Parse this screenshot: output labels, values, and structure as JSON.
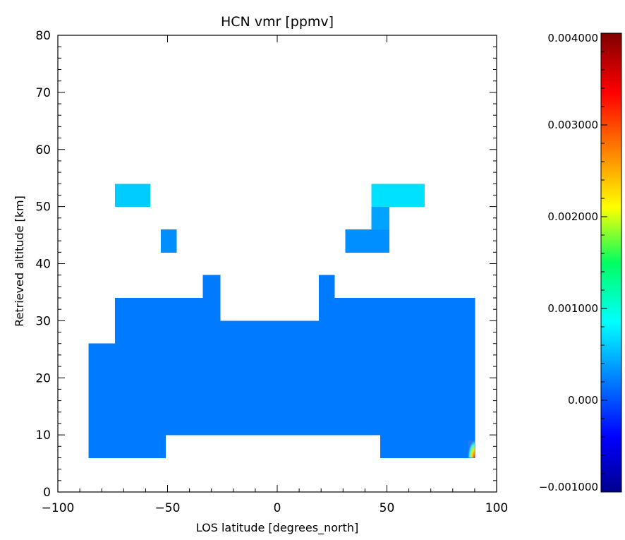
{
  "chart_data": {
    "type": "heatmap",
    "title": "HCN vmr [ppmv]",
    "xlabel": "LOS latitude [degrees_north]",
    "ylabel": "Retrieved altitude [km]",
    "xlim": [
      -100,
      100
    ],
    "ylim": [
      0,
      80
    ],
    "x_ticks": [
      -100,
      -50,
      0,
      50,
      100
    ],
    "x_tick_labels": [
      "−100",
      "−50",
      "0",
      "50",
      "100"
    ],
    "y_ticks": [
      0,
      10,
      20,
      30,
      40,
      50,
      60,
      70,
      80
    ],
    "y_tick_labels": [
      "0",
      "10",
      "20",
      "30",
      "40",
      "50",
      "60",
      "70",
      "80"
    ],
    "colorbar": {
      "range": [
        -0.001,
        0.004
      ],
      "ticks": [
        -0.001,
        0.0,
        0.001,
        0.002,
        0.003,
        0.004
      ],
      "tick_labels": [
        "−0.001000",
        "0.000",
        "0.001000",
        "0.002000",
        "0.003000",
        "0.004000"
      ],
      "colormap": "rainbow (dark blue to dark red)"
    },
    "base_value_approx": 0.0002,
    "regions": [
      {
        "lat": [
          -86,
          90
        ],
        "alt": [
          10,
          26
        ],
        "value": 0.0002
      },
      {
        "lat": [
          -86,
          -51
        ],
        "alt": [
          6,
          10
        ],
        "value": 0.0002
      },
      {
        "lat": [
          47,
          90
        ],
        "alt": [
          6,
          10
        ],
        "value": 0.0002
      },
      {
        "lat": [
          -74,
          90
        ],
        "alt": [
          26,
          30
        ],
        "value": 0.0002
      },
      {
        "lat": [
          -74,
          -26
        ],
        "alt": [
          30,
          34
        ],
        "value": 0.0002
      },
      {
        "lat": [
          19,
          90
        ],
        "alt": [
          30,
          34
        ],
        "value": 0.0002
      },
      {
        "lat": [
          -34,
          -26
        ],
        "alt": [
          34,
          38
        ],
        "value": 0.0002
      },
      {
        "lat": [
          19,
          26
        ],
        "alt": [
          34,
          38
        ],
        "value": 0.0002
      },
      {
        "lat": [
          -53,
          -46
        ],
        "alt": [
          42,
          46
        ],
        "value": 0.0003
      },
      {
        "lat": [
          31,
          51
        ],
        "alt": [
          42,
          46
        ],
        "value": 0.0003
      },
      {
        "lat": [
          43,
          51
        ],
        "alt": [
          46,
          50
        ],
        "value": 0.0004
      },
      {
        "lat": [
          -74,
          -58
        ],
        "alt": [
          50,
          54
        ],
        "value": 0.0006
      },
      {
        "lat": [
          43,
          67
        ],
        "alt": [
          50,
          54
        ],
        "value": 0.0007
      }
    ],
    "highlights": [
      {
        "lat": [
          87,
          90
        ],
        "alt": [
          6,
          9
        ],
        "value": 0.0025
      }
    ],
    "grid": false,
    "legend": "colorbar-right"
  }
}
